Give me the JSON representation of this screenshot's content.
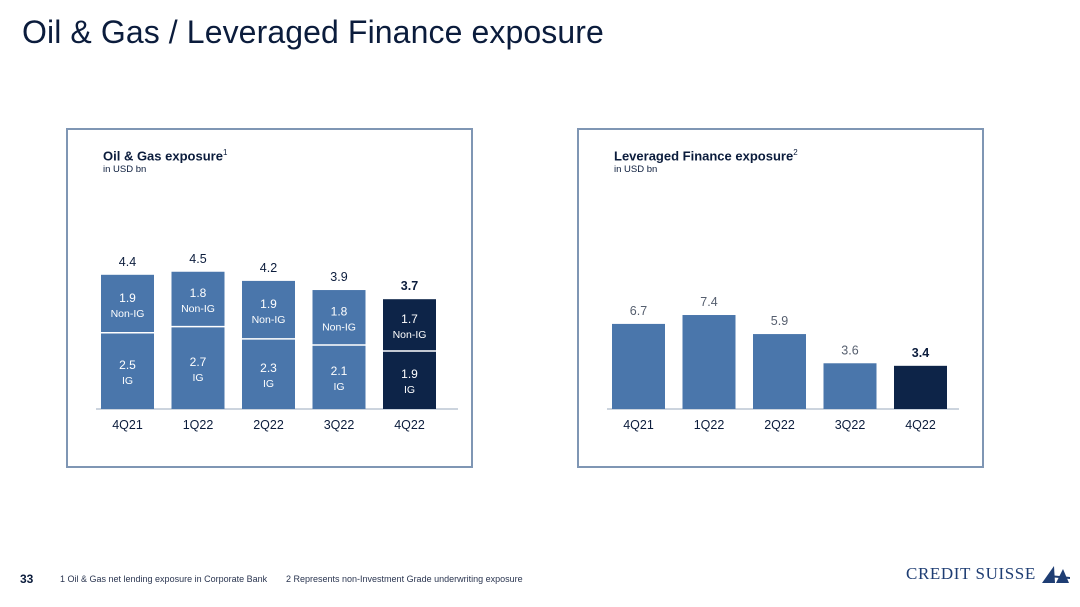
{
  "slide": {
    "title": "Oil & Gas / Leveraged Finance exposure",
    "page_number": "33"
  },
  "panels": {
    "left": {
      "title": "Oil & Gas exposure",
      "superscript": "1",
      "unit": "in USD bn"
    },
    "right": {
      "title": "Leveraged Finance exposure",
      "superscript": "2",
      "unit": "in USD bn"
    }
  },
  "footnotes": [
    "1 Oil & Gas net lending exposure in Corporate Bank",
    "2 Represents non-Investment Grade underwriting exposure"
  ],
  "logo": {
    "text": "CREDIT SUISSE"
  },
  "colors": {
    "bar": "#4a76ab",
    "highlight": "#0d2448",
    "text_dark": "#0b1c3c",
    "text_light": "#ffffff",
    "panel_border": "#7f96b4"
  },
  "chart_data": [
    {
      "type": "bar",
      "stacked": true,
      "title": "Oil & Gas exposure",
      "subtitle": "in USD bn",
      "categories": [
        "4Q21",
        "1Q22",
        "2Q22",
        "3Q22",
        "4Q22"
      ],
      "series": [
        {
          "name": "IG",
          "values": [
            2.5,
            2.7,
            2.3,
            2.1,
            1.9
          ]
        },
        {
          "name": "Non-IG",
          "values": [
            1.9,
            1.8,
            1.9,
            1.8,
            1.7
          ]
        }
      ],
      "totals": [
        4.4,
        4.5,
        4.2,
        3.9,
        3.7
      ],
      "segment_labels": {
        "IG": "IG",
        "Non-IG": "Non-IG"
      },
      "highlight_index": 4,
      "ylim": [
        0,
        4.5
      ]
    },
    {
      "type": "bar",
      "title": "Leveraged Finance exposure",
      "subtitle": "in USD bn",
      "categories": [
        "4Q21",
        "1Q22",
        "2Q22",
        "3Q22",
        "4Q22"
      ],
      "values": [
        6.7,
        7.4,
        5.9,
        3.6,
        3.4
      ],
      "highlight_index": 4,
      "ylim": [
        0,
        7.4
      ]
    }
  ]
}
